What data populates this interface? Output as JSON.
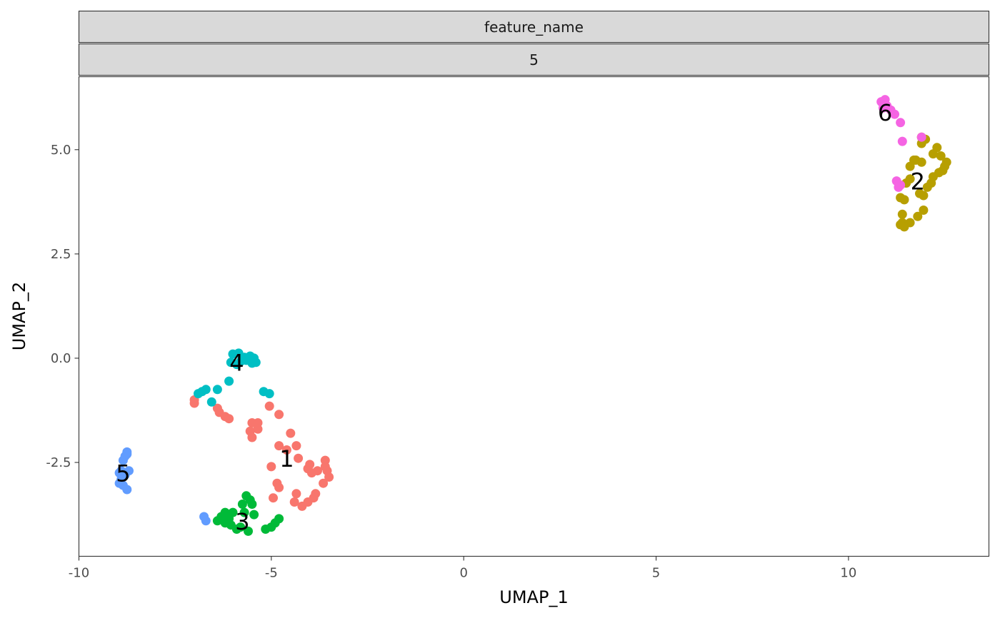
{
  "chart_data": {
    "type": "scatter",
    "facet_strips": [
      "feature_name",
      "5"
    ],
    "xlabel": "UMAP_1",
    "ylabel": "UMAP_2",
    "xlim": [
      -10,
      13.65
    ],
    "ylim": [
      -4.75,
      6.75
    ],
    "x_ticks": [
      {
        "value": -10,
        "label": "-10"
      },
      {
        "value": -5,
        "label": "-5"
      },
      {
        "value": 0,
        "label": "0"
      },
      {
        "value": 5,
        "label": "5"
      },
      {
        "value": 10,
        "label": "10"
      }
    ],
    "y_ticks": [
      {
        "value": -2.5,
        "label": "-2.5"
      },
      {
        "value": 0,
        "label": "0.0"
      },
      {
        "value": 2.5,
        "label": "2.5"
      },
      {
        "value": 5,
        "label": "5.0"
      }
    ],
    "grid": false,
    "legend": "none",
    "series": [
      {
        "id": "cluster-1",
        "label": "1",
        "color": "#F8766D",
        "label_pos": [
          -4.6,
          -2.45
        ],
        "points": [
          [
            -7.0,
            -1.0
          ],
          [
            -7.0,
            -1.08
          ],
          [
            -6.4,
            -1.2
          ],
          [
            -6.35,
            -1.3
          ],
          [
            -6.2,
            -1.4
          ],
          [
            -6.1,
            -1.45
          ],
          [
            -5.5,
            -1.55
          ],
          [
            -5.35,
            -1.55
          ],
          [
            -5.55,
            -1.75
          ],
          [
            -5.5,
            -1.9
          ],
          [
            -5.35,
            -1.7
          ],
          [
            -5.05,
            -1.15
          ],
          [
            -4.8,
            -1.35
          ],
          [
            -4.5,
            -1.8
          ],
          [
            -4.8,
            -2.1
          ],
          [
            -4.6,
            -2.2
          ],
          [
            -4.35,
            -2.1
          ],
          [
            -4.3,
            -2.4
          ],
          [
            -4.0,
            -2.55
          ],
          [
            -4.05,
            -2.65
          ],
          [
            -3.8,
            -2.7
          ],
          [
            -3.6,
            -2.45
          ],
          [
            -3.6,
            -2.6
          ],
          [
            -3.55,
            -2.7
          ],
          [
            -3.5,
            -2.85
          ],
          [
            -3.65,
            -3.0
          ],
          [
            -3.85,
            -3.25
          ],
          [
            -3.9,
            -3.35
          ],
          [
            -4.05,
            -3.45
          ],
          [
            -4.2,
            -3.55
          ],
          [
            -4.4,
            -3.45
          ],
          [
            -4.35,
            -3.25
          ],
          [
            -4.85,
            -3.0
          ],
          [
            -4.8,
            -3.1
          ],
          [
            -4.95,
            -3.35
          ],
          [
            -5.0,
            -2.6
          ],
          [
            -3.95,
            -2.75
          ]
        ]
      },
      {
        "id": "cluster-2",
        "label": "2",
        "color": "#B79F00",
        "label_pos": [
          11.8,
          4.2
        ],
        "points": [
          [
            11.9,
            5.3
          ],
          [
            12.0,
            5.25
          ],
          [
            11.9,
            5.15
          ],
          [
            12.3,
            5.05
          ],
          [
            12.2,
            4.9
          ],
          [
            12.4,
            4.85
          ],
          [
            12.55,
            4.7
          ],
          [
            12.5,
            4.6
          ],
          [
            12.45,
            4.5
          ],
          [
            12.35,
            4.45
          ],
          [
            12.15,
            4.2
          ],
          [
            11.9,
            4.7
          ],
          [
            11.75,
            4.75
          ],
          [
            11.6,
            4.6
          ],
          [
            11.6,
            4.3
          ],
          [
            11.5,
            4.2
          ],
          [
            11.85,
            3.95
          ],
          [
            11.95,
            3.9
          ],
          [
            11.35,
            3.85
          ],
          [
            11.45,
            3.8
          ],
          [
            11.95,
            3.55
          ],
          [
            11.4,
            3.45
          ],
          [
            11.8,
            3.4
          ],
          [
            11.6,
            3.25
          ],
          [
            11.4,
            3.25
          ],
          [
            11.35,
            3.2
          ],
          [
            11.45,
            3.15
          ],
          [
            12.2,
            4.35
          ],
          [
            12.05,
            4.1
          ],
          [
            11.7,
            4.75
          ]
        ]
      },
      {
        "id": "cluster-3",
        "label": "3",
        "color": "#00BA38",
        "label_pos": [
          -5.75,
          -3.95
        ],
        "points": [
          [
            -6.2,
            -3.7
          ],
          [
            -6.0,
            -3.7
          ],
          [
            -6.1,
            -3.85
          ],
          [
            -6.3,
            -3.8
          ],
          [
            -6.4,
            -3.9
          ],
          [
            -6.2,
            -3.95
          ],
          [
            -6.05,
            -4.0
          ],
          [
            -5.75,
            -3.5
          ],
          [
            -5.65,
            -3.3
          ],
          [
            -5.55,
            -3.4
          ],
          [
            -5.5,
            -3.5
          ],
          [
            -5.7,
            -3.7
          ],
          [
            -5.8,
            -4.05
          ],
          [
            -5.6,
            -4.15
          ],
          [
            -5.9,
            -4.1
          ],
          [
            -5.15,
            -4.1
          ],
          [
            -5.0,
            -4.05
          ],
          [
            -4.9,
            -3.95
          ],
          [
            -4.8,
            -3.85
          ],
          [
            -6.2,
            -3.75
          ],
          [
            -5.45,
            -3.75
          ]
        ]
      },
      {
        "id": "cluster-4",
        "label": "4",
        "color": "#00BFC4",
        "label_pos": [
          -5.9,
          -0.15
        ],
        "points": [
          [
            -6.0,
            0.1
          ],
          [
            -5.85,
            0.12
          ],
          [
            -5.7,
            0.02
          ],
          [
            -5.55,
            0.05
          ],
          [
            -5.45,
            0.0
          ],
          [
            -5.4,
            -0.1
          ],
          [
            -5.65,
            -0.05
          ],
          [
            -5.8,
            -0.08
          ],
          [
            -6.05,
            -0.1
          ],
          [
            -5.9,
            -0.15
          ],
          [
            -6.1,
            -0.55
          ],
          [
            -6.4,
            -0.75
          ],
          [
            -6.7,
            -0.75
          ],
          [
            -6.8,
            -0.8
          ],
          [
            -6.9,
            -0.85
          ],
          [
            -6.55,
            -1.05
          ],
          [
            -5.2,
            -0.8
          ],
          [
            -5.05,
            -0.85
          ],
          [
            -5.5,
            -0.12
          ]
        ]
      },
      {
        "id": "cluster-5",
        "label": "5",
        "color": "#619CFF",
        "label_pos": [
          -8.85,
          -2.8
        ],
        "points": [
          [
            -8.75,
            -2.25
          ],
          [
            -8.8,
            -2.35
          ],
          [
            -8.85,
            -2.45
          ],
          [
            -8.75,
            -2.3
          ],
          [
            -8.9,
            -2.7
          ],
          [
            -8.95,
            -2.75
          ],
          [
            -8.9,
            -2.9
          ],
          [
            -8.95,
            -3.0
          ],
          [
            -8.85,
            -3.05
          ],
          [
            -8.75,
            -3.15
          ],
          [
            -8.7,
            -2.7
          ],
          [
            -6.75,
            -3.8
          ],
          [
            -6.7,
            -3.9
          ],
          [
            -8.8,
            -2.8
          ]
        ]
      },
      {
        "id": "cluster-6",
        "label": "6",
        "color": "#F564E3",
        "label_pos": [
          10.95,
          5.85
        ],
        "points": [
          [
            10.85,
            6.15
          ],
          [
            10.95,
            6.2
          ],
          [
            11.0,
            6.05
          ],
          [
            10.9,
            6.0
          ],
          [
            11.1,
            5.95
          ],
          [
            11.2,
            5.85
          ],
          [
            11.35,
            5.65
          ],
          [
            11.4,
            5.2
          ],
          [
            11.9,
            5.3
          ],
          [
            11.25,
            4.25
          ],
          [
            11.3,
            4.1
          ],
          [
            11.35,
            4.15
          ]
        ]
      }
    ]
  }
}
